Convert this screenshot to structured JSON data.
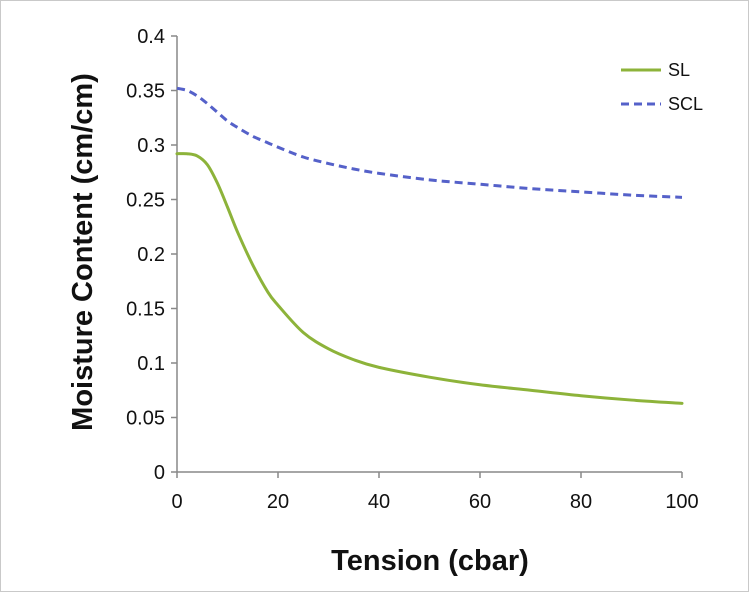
{
  "chart_data": {
    "type": "line",
    "title": "",
    "xlabel": "Tension (cbar)",
    "ylabel": "Moisture Content (cm/cm)",
    "xlim": [
      0,
      100
    ],
    "ylim": [
      0,
      0.4
    ],
    "x_ticks": [
      0,
      20,
      40,
      60,
      80,
      100
    ],
    "y_ticks": [
      0,
      0.05,
      0.1,
      0.15,
      0.2,
      0.25,
      0.3,
      0.35,
      0.4
    ],
    "x_tick_labels": [
      "0",
      "20",
      "40",
      "60",
      "80",
      "100"
    ],
    "y_tick_labels": [
      "0",
      "0.05",
      "0.1",
      "0.15",
      "0.2",
      "0.25",
      "0.3",
      "0.35",
      "0.4"
    ],
    "grid": false,
    "legend_position": "top-right",
    "x": [
      0,
      2,
      4,
      6,
      8,
      10,
      12,
      15,
      18,
      20,
      25,
      30,
      35,
      40,
      50,
      60,
      70,
      80,
      90,
      100
    ],
    "series": [
      {
        "name": "SL",
        "color": "#8db33a",
        "style": "solid",
        "values": [
          0.292,
          0.292,
          0.29,
          0.282,
          0.265,
          0.243,
          0.22,
          0.19,
          0.165,
          0.153,
          0.128,
          0.113,
          0.103,
          0.096,
          0.087,
          0.08,
          0.075,
          0.07,
          0.066,
          0.063
        ]
      },
      {
        "name": "SCL",
        "color": "#5561c9",
        "style": "dashed",
        "values": [
          0.352,
          0.35,
          0.345,
          0.338,
          0.33,
          0.322,
          0.316,
          0.308,
          0.302,
          0.298,
          0.289,
          0.283,
          0.278,
          0.274,
          0.268,
          0.264,
          0.26,
          0.257,
          0.254,
          0.252
        ]
      }
    ]
  }
}
